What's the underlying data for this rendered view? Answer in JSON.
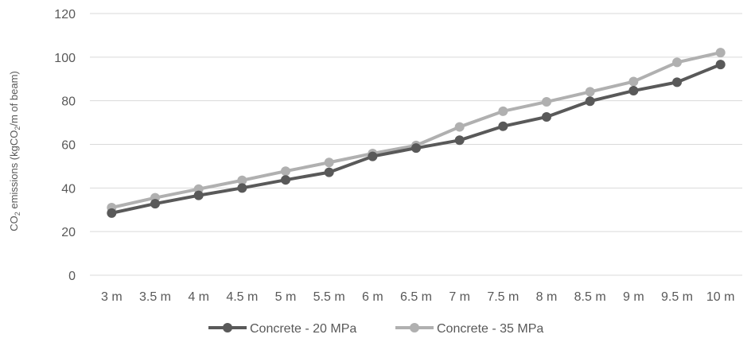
{
  "chart_data": {
    "type": "line",
    "categories": [
      "3 m",
      "3.5 m",
      "4 m",
      "4.5 m",
      "5 m",
      "5.5 m",
      "6 m",
      "6.5 m",
      "7 m",
      "7.5 m",
      "8 m",
      "8.5 m",
      "9 m",
      "9.5 m",
      "10 m"
    ],
    "series": [
      {
        "name": "Concrete - 20 MPa",
        "color": "#595959",
        "values": [
          28.5,
          32.8,
          36.6,
          40.0,
          43.7,
          47.2,
          54.5,
          58.3,
          61.9,
          68.3,
          72.6,
          79.8,
          84.6,
          88.5,
          96.6
        ]
      },
      {
        "name": "Concrete - 35 MPa",
        "color": "#b0b0b0",
        "values": [
          31.0,
          35.5,
          39.5,
          43.5,
          47.7,
          51.7,
          55.8,
          59.5,
          68.0,
          75.2,
          79.5,
          84.1,
          88.8,
          97.6,
          102.1
        ]
      }
    ],
    "ylabel": "CO₂ emissions (kgCO₂/m of beam)",
    "ylabel_parts": {
      "p1": "CO",
      "sub1": "2",
      "p2": " emissions (kgCO",
      "sub2": "2",
      "p3": "/m of beam)"
    },
    "xlabel": "",
    "title": "",
    "ylim": [
      0,
      120
    ],
    "yticks": [
      0,
      20,
      40,
      60,
      80,
      100,
      120
    ],
    "grid": true,
    "legend_position": "bottom",
    "gridline_color": "#d9d9d9"
  }
}
